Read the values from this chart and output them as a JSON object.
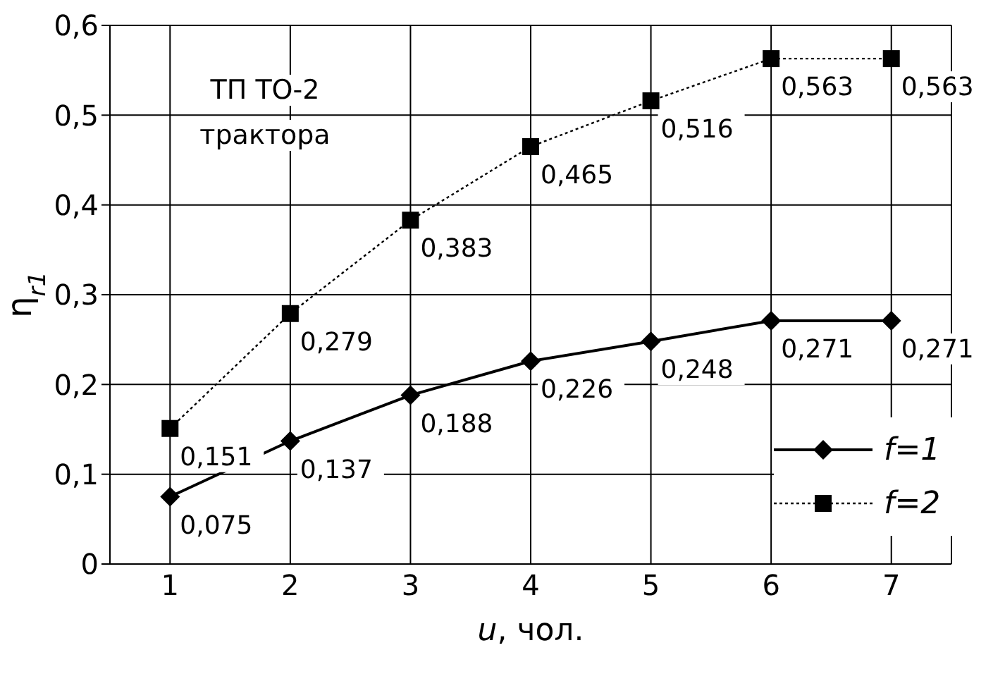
{
  "chart_data": {
    "type": "line",
    "xlabel": "u, чол.",
    "ylabel": "η$_{r1}$",
    "annotations": [
      "ТП ТО-2 трактора"
    ],
    "categories": [
      "1",
      "2",
      "3",
      "4",
      "5",
      "6",
      "7"
    ],
    "ylim": [
      0,
      0.6
    ],
    "yticks": [
      {
        "value": 0,
        "label": "0"
      },
      {
        "value": 0.1,
        "label": "0,1"
      },
      {
        "value": 0.2,
        "label": "0,2"
      },
      {
        "value": 0.3,
        "label": "0,3"
      },
      {
        "value": 0.4,
        "label": "0,4"
      },
      {
        "value": 0.5,
        "label": "0,5"
      },
      {
        "value": 0.6,
        "label": "0,6"
      }
    ],
    "grid": true,
    "legend": "bottom right",
    "series": [
      {
        "name": "f=1",
        "color": "#000000",
        "marker": "diamond",
        "line_style": "solid",
        "values": [
          0.075,
          0.137,
          0.188,
          0.226,
          0.248,
          0.271,
          0.271
        ],
        "value_labels": [
          "0,075",
          "0,137",
          "0,188",
          "0,226",
          "0,248",
          "0,271",
          "0,271"
        ]
      },
      {
        "name": "f=2",
        "color": "#000000",
        "marker": "square",
        "line_style": "dotted",
        "values": [
          0.151,
          0.279,
          0.383,
          0.465,
          0.516,
          0.563,
          0.563
        ],
        "value_labels": [
          "0,151",
          "0,279",
          "0,383",
          "0,465",
          "0,516",
          "0,563",
          "0,563"
        ]
      }
    ]
  }
}
